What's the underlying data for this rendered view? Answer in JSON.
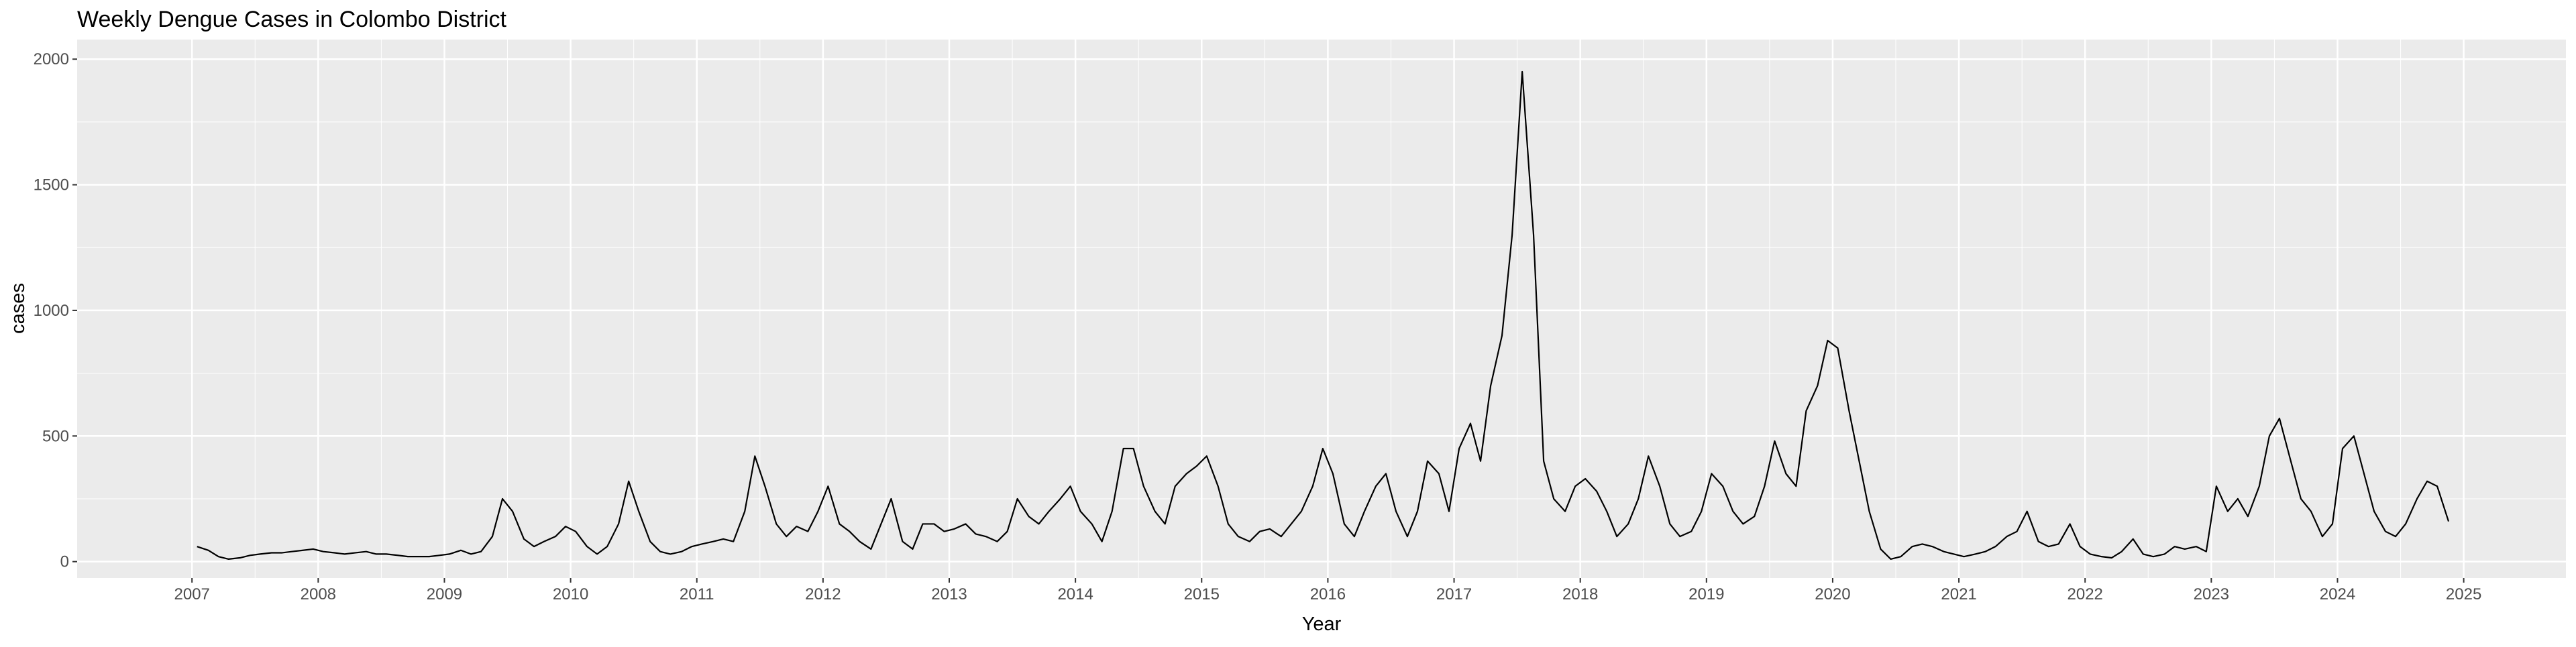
{
  "chart_data": {
    "type": "line",
    "title": "Weekly Dengue Cases in Colombo District",
    "x_label": "Year",
    "y_label": "cases",
    "x": [
      2007.04,
      2007.13,
      2007.21,
      2007.29,
      2007.38,
      2007.46,
      2007.54,
      2007.63,
      2007.71,
      2007.79,
      2007.88,
      2007.96,
      2008.04,
      2008.13,
      2008.21,
      2008.29,
      2008.38,
      2008.46,
      2008.54,
      2008.63,
      2008.71,
      2008.79,
      2008.88,
      2008.96,
      2009.04,
      2009.13,
      2009.21,
      2009.29,
      2009.38,
      2009.46,
      2009.54,
      2009.63,
      2009.71,
      2009.79,
      2009.88,
      2009.96,
      2010.04,
      2010.13,
      2010.21,
      2010.29,
      2010.38,
      2010.46,
      2010.54,
      2010.63,
      2010.71,
      2010.79,
      2010.88,
      2010.96,
      2011.04,
      2011.13,
      2011.21,
      2011.29,
      2011.38,
      2011.46,
      2011.54,
      2011.63,
      2011.71,
      2011.79,
      2011.88,
      2011.96,
      2012.04,
      2012.13,
      2012.21,
      2012.29,
      2012.38,
      2012.46,
      2012.54,
      2012.63,
      2012.71,
      2012.79,
      2012.88,
      2012.96,
      2013.04,
      2013.13,
      2013.21,
      2013.29,
      2013.38,
      2013.46,
      2013.54,
      2013.63,
      2013.71,
      2013.79,
      2013.88,
      2013.96,
      2014.04,
      2014.13,
      2014.21,
      2014.29,
      2014.38,
      2014.46,
      2014.54,
      2014.63,
      2014.71,
      2014.79,
      2014.88,
      2014.96,
      2015.04,
      2015.13,
      2015.21,
      2015.29,
      2015.38,
      2015.46,
      2015.54,
      2015.63,
      2015.71,
      2015.79,
      2015.88,
      2015.96,
      2016.04,
      2016.13,
      2016.21,
      2016.29,
      2016.38,
      2016.46,
      2016.54,
      2016.63,
      2016.71,
      2016.79,
      2016.88,
      2016.96,
      2017.04,
      2017.13,
      2017.21,
      2017.29,
      2017.38,
      2017.46,
      2017.54,
      2017.63,
      2017.71,
      2017.79,
      2017.88,
      2017.96,
      2018.04,
      2018.13,
      2018.21,
      2018.29,
      2018.38,
      2018.46,
      2018.54,
      2018.63,
      2018.71,
      2018.79,
      2018.88,
      2018.96,
      2019.04,
      2019.13,
      2019.21,
      2019.29,
      2019.38,
      2019.46,
      2019.54,
      2019.63,
      2019.71,
      2019.79,
      2019.88,
      2019.96,
      2020.04,
      2020.13,
      2020.21,
      2020.29,
      2020.38,
      2020.46,
      2020.54,
      2020.63,
      2020.71,
      2020.79,
      2020.88,
      2020.96,
      2021.04,
      2021.13,
      2021.21,
      2021.29,
      2021.38,
      2021.46,
      2021.54,
      2021.63,
      2021.71,
      2021.79,
      2021.88,
      2021.96,
      2022.04,
      2022.13,
      2022.21,
      2022.29,
      2022.38,
      2022.46,
      2022.54,
      2022.63,
      2022.71,
      2022.79,
      2022.88,
      2022.96,
      2023.04,
      2023.13,
      2023.21,
      2023.29,
      2023.38,
      2023.46,
      2023.54,
      2023.63,
      2023.71,
      2023.79,
      2023.88,
      2023.96,
      2024.04,
      2024.13,
      2024.21,
      2024.29,
      2024.38,
      2024.46,
      2024.54,
      2024.63,
      2024.71,
      2024.79,
      2024.88
    ],
    "values": [
      60,
      45,
      20,
      10,
      15,
      25,
      30,
      35,
      35,
      40,
      45,
      50,
      40,
      35,
      30,
      35,
      40,
      30,
      30,
      25,
      20,
      20,
      20,
      25,
      30,
      45,
      30,
      40,
      100,
      250,
      200,
      90,
      60,
      80,
      100,
      140,
      120,
      60,
      30,
      60,
      150,
      320,
      200,
      80,
      40,
      30,
      40,
      60,
      70,
      80,
      90,
      80,
      200,
      420,
      300,
      150,
      100,
      140,
      120,
      200,
      300,
      150,
      120,
      80,
      50,
      150,
      250,
      80,
      50,
      150,
      150,
      120,
      130,
      150,
      110,
      100,
      80,
      120,
      250,
      180,
      150,
      200,
      250,
      300,
      200,
      150,
      80,
      200,
      450,
      450,
      300,
      200,
      150,
      300,
      350,
      380,
      420,
      300,
      150,
      100,
      80,
      120,
      130,
      100,
      150,
      200,
      300,
      450,
      350,
      150,
      100,
      200,
      300,
      350,
      200,
      100,
      200,
      400,
      350,
      200,
      450,
      550,
      400,
      700,
      900,
      1300,
      1950,
      1300,
      400,
      250,
      200,
      300,
      330,
      280,
      200,
      100,
      150,
      250,
      420,
      300,
      150,
      100,
      120,
      200,
      350,
      300,
      200,
      150,
      180,
      300,
      480,
      350,
      300,
      600,
      700,
      880,
      850,
      600,
      400,
      200,
      50,
      10,
      20,
      60,
      70,
      60,
      40,
      30,
      20,
      30,
      40,
      60,
      100,
      120,
      200,
      80,
      60,
      70,
      150,
      60,
      30,
      20,
      15,
      40,
      90,
      30,
      20,
      30,
      60,
      50,
      60,
      40,
      300,
      200,
      250,
      180,
      300,
      500,
      570,
      400,
      250,
      200,
      100,
      150,
      450,
      500,
      350,
      200,
      120,
      100,
      150,
      250,
      320,
      300,
      160
    ],
    "color": "#000000",
    "xlim": [
      2006.09,
      2025.81
    ],
    "xticks": [
      2007,
      2008,
      2009,
      2010,
      2011,
      2012,
      2013,
      2014,
      2015,
      2016,
      2017,
      2018,
      2019,
      2020,
      2021,
      2022,
      2023,
      2024,
      2025
    ],
    "ylim": [
      -65,
      2078
    ],
    "yticks": [
      0,
      500,
      1000,
      1500,
      2000
    ],
    "grid": true
  }
}
